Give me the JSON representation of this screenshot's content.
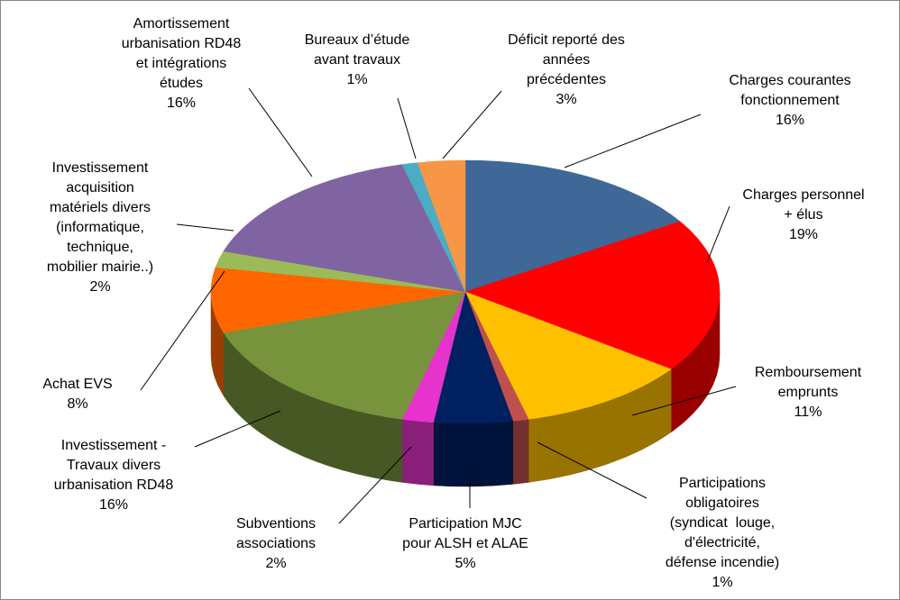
{
  "chart_data": {
    "type": "pie3d",
    "categories": [
      "Charges courantes\nfonctionnement",
      "Charges personnel\n+ élus",
      "Remboursement\nemprunts",
      "Participations\nobligatoires\n(syndicat  louge,\nd'électricité,\ndéfense incendie)",
      "Participation MJC\npour ALSH et ALAE",
      "Subventions\nassociations",
      "Investissement -\nTravaux divers\nurbanisation RD48",
      "Achat EVS",
      "Investissement\nacquisition\nmatériels divers\n(informatique,\ntechnique,\nmobilier mairie..)",
      "Amortissement\nurbanisation RD48\net intégrations\nétudes",
      "Bureaux d’étude\navant travaux",
      "Déficit reporté des\nannées\nprécédentes"
    ],
    "values": [
      16,
      19,
      11,
      1,
      5,
      2,
      16,
      8,
      2,
      16,
      1,
      3
    ],
    "value_labels": [
      "16%",
      "19%",
      "11%",
      "1%",
      "5%",
      "2%",
      "16%",
      "8%",
      "2%",
      "16%",
      "1%",
      "3%"
    ],
    "colors": [
      "#3F6797",
      "#FF0000",
      "#FFC000",
      "#C0504D",
      "#002060",
      "#E633CC",
      "#77933C",
      "#FF6600",
      "#9BBB59",
      "#8064A2",
      "#4BACC6",
      "#F79646"
    ]
  }
}
